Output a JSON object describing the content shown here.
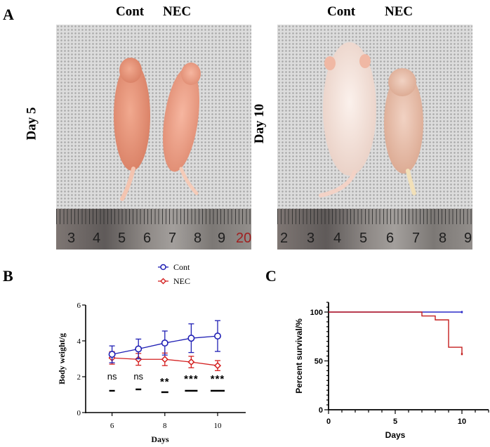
{
  "panels": {
    "a": {
      "letter": "A",
      "photos": [
        {
          "day_label": "Day 5",
          "group_labels": [
            "Cont",
            "NEC"
          ],
          "ruler_numbers": [
            "3",
            "4",
            "5",
            "6",
            "7",
            "8",
            "9",
            "20"
          ],
          "animal_colors": [
            "#e8987c",
            "#efa48c"
          ]
        },
        {
          "day_label": "Day 10",
          "group_labels": [
            "Cont",
            "NEC"
          ],
          "ruler_numbers": [
            "2",
            "3",
            "4",
            "5",
            "6",
            "7",
            "8",
            "9"
          ],
          "animal_colors": [
            "#f3e4de",
            "#ebc3b0"
          ]
        }
      ]
    },
    "b": {
      "letter": "B"
    },
    "c": {
      "letter": "C"
    }
  },
  "chart_data": [
    {
      "type": "line",
      "panel": "B",
      "title": "",
      "xlabel": "Days",
      "ylabel": "Body weight/g",
      "xlim": [
        5,
        11
      ],
      "ylim": [
        0,
        6
      ],
      "xticks": [
        6,
        8,
        10
      ],
      "yticks": [
        0,
        2,
        4,
        6
      ],
      "x": [
        6,
        7,
        8,
        9,
        10
      ],
      "legend": {
        "placement": "top-right",
        "entries": [
          "Cont",
          "NEC"
        ]
      },
      "series": [
        {
          "name": "Cont",
          "color": "#1f1fb4",
          "marker": "circle",
          "values": [
            3.25,
            3.55,
            3.88,
            4.15,
            4.27
          ],
          "error": [
            0.47,
            0.55,
            0.67,
            0.8,
            0.86
          ]
        },
        {
          "name": "NEC",
          "color": "#d42020",
          "marker": "diamond",
          "values": [
            3.05,
            2.97,
            2.97,
            2.82,
            2.62
          ],
          "error": [
            0.35,
            0.33,
            0.35,
            0.32,
            0.28
          ]
        }
      ],
      "significance": [
        "ns",
        "ns",
        "**",
        "***",
        "***"
      ]
    },
    {
      "type": "line",
      "subtype": "survival-step",
      "panel": "C",
      "title": "",
      "xlabel": "Days",
      "ylabel": "Percent survival/%",
      "xlim": [
        0,
        12
      ],
      "ylim": [
        0,
        110
      ],
      "xticks": [
        0,
        5,
        10
      ],
      "yticks": [
        0,
        50,
        100
      ],
      "series": [
        {
          "name": "Cont",
          "color": "#2b2bc8",
          "steps": [
            [
              0,
              100
            ],
            [
              10,
              100
            ]
          ]
        },
        {
          "name": "NEC",
          "color": "#c41e1e",
          "steps": [
            [
              0,
              100
            ],
            [
              7,
              100
            ],
            [
              7,
              96
            ],
            [
              8,
              96
            ],
            [
              8,
              92
            ],
            [
              9,
              92
            ],
            [
              9,
              64
            ],
            [
              10,
              64
            ],
            [
              10,
              57
            ]
          ]
        }
      ]
    }
  ]
}
